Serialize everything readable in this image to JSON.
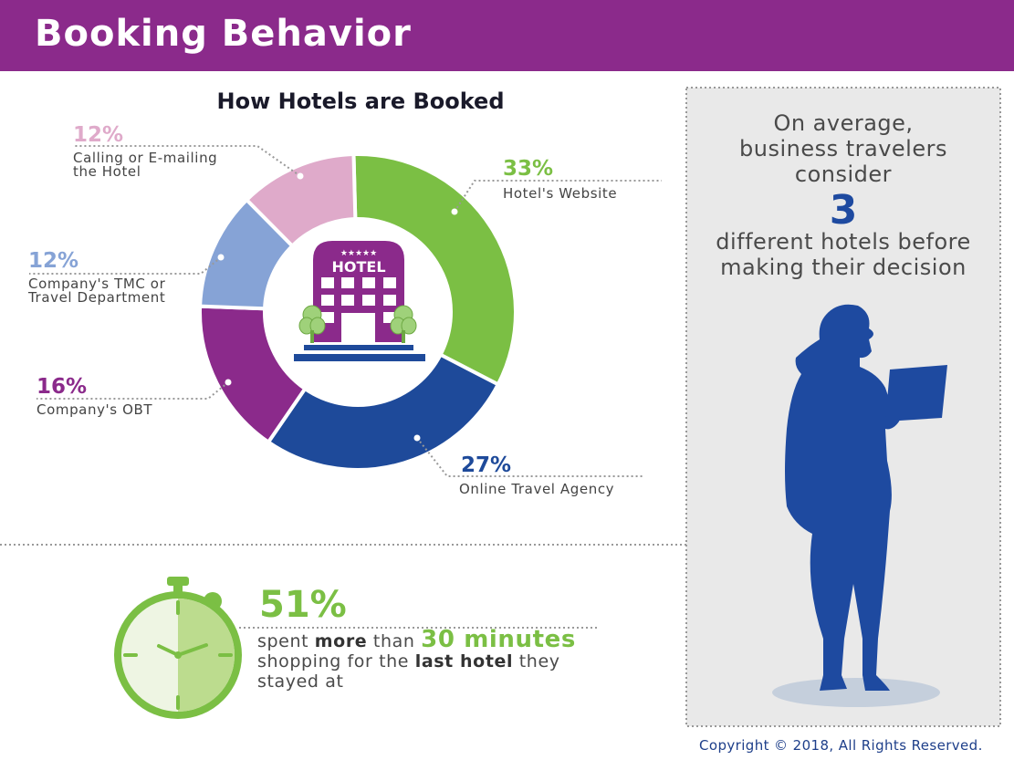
{
  "header": {
    "title": "Booking Behavior"
  },
  "chart_data": {
    "type": "pie",
    "title": "How Hotels are Booked",
    "unit": "%",
    "slices": [
      {
        "label": "Hotel's Website",
        "value": 33,
        "pct_label": "33%",
        "color": "#7bbf44"
      },
      {
        "label": "Online Travel Agency",
        "value": 27,
        "pct_label": "27%",
        "color": "#1e4a9a"
      },
      {
        "label": "Company's OBT",
        "value": 16,
        "pct_label": "16%",
        "color": "#8b2a8b"
      },
      {
        "label_lines": [
          "Company's TMC or",
          "Travel Department"
        ],
        "value": 12,
        "pct_label": "12%",
        "color": "#86a3d6"
      },
      {
        "label_lines": [
          "Calling or E-mailing",
          "the Hotel"
        ],
        "value": 12,
        "pct_label": "12%",
        "color": "#dfaaca"
      }
    ],
    "center_icon": {
      "name": "hotel-icon",
      "sign": "HOTEL",
      "stars": "★★★★★"
    }
  },
  "side_panel": {
    "line1": "On average,",
    "line2": "business travelers",
    "line3": "consider",
    "number": "3",
    "line4": "different hotels before",
    "line5": "making their decision"
  },
  "stat": {
    "percent": "51%",
    "p1": "spent ",
    "more": "more",
    "p2": " than ",
    "minutes": "30 minutes",
    "p3": "shopping for the ",
    "last_hotel": "last hotel",
    "p4": " they",
    "p5": "stayed at"
  },
  "footer": {
    "copyright": "Copyright © 2018, All Rights Reserved."
  },
  "colors": {
    "purple": "#8b2a8b",
    "green": "#7bbf44",
    "blue": "#1e4a9a",
    "light_blue": "#86a3d6",
    "pink": "#dfaaca"
  }
}
